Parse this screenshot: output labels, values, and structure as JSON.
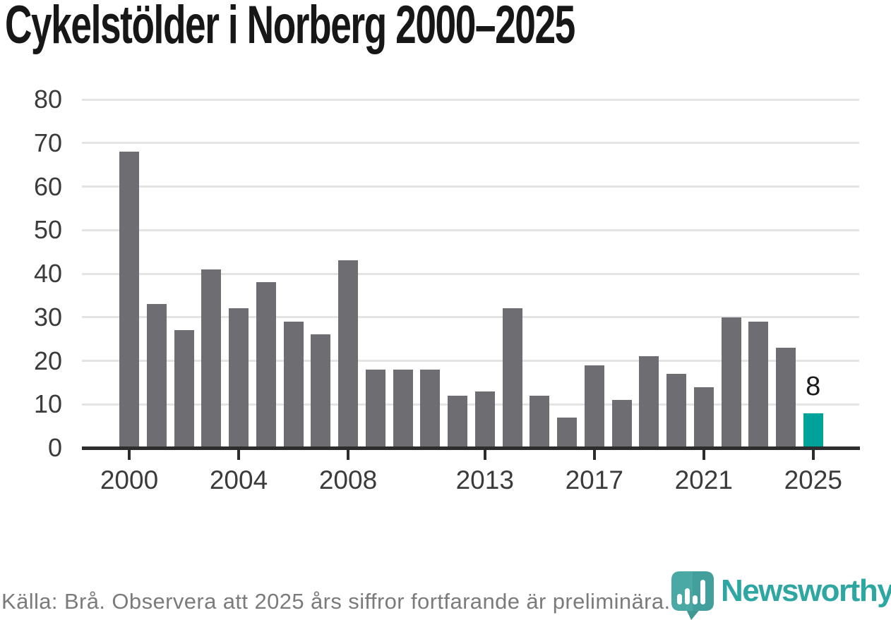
{
  "title": "Cykelstölder i Norberg 2000–2025",
  "chart_data": {
    "type": "bar",
    "title": "Cykelstölder i Norberg 2000–2025",
    "categories": [
      "2000",
      "2001",
      "2002",
      "2003",
      "2004",
      "2005",
      "2006",
      "2007",
      "2008",
      "2009",
      "2010",
      "2011",
      "2012",
      "2013",
      "2014",
      "2015",
      "2016",
      "2017",
      "2018",
      "2019",
      "2020",
      "2021",
      "2022",
      "2023",
      "2024",
      "2025"
    ],
    "values": [
      68,
      33,
      27,
      41,
      32,
      38,
      29,
      26,
      43,
      18,
      18,
      18,
      12,
      13,
      32,
      12,
      7,
      19,
      11,
      21,
      17,
      14,
      30,
      29,
      23,
      8
    ],
    "xlabel": "",
    "ylabel": "",
    "ylim": [
      0,
      80
    ],
    "y_ticks": [
      "0",
      "10",
      "20",
      "30",
      "40",
      "50",
      "60",
      "70",
      "80"
    ],
    "x_ticks": [
      {
        "label": "2000",
        "index": 0
      },
      {
        "label": "2004",
        "index": 4
      },
      {
        "label": "2008",
        "index": 8
      },
      {
        "label": "2013",
        "index": 13
      },
      {
        "label": "2017",
        "index": 17
      },
      {
        "label": "2021",
        "index": 21
      },
      {
        "label": "2025",
        "index": 25
      }
    ],
    "grid": true,
    "legend_position": "none",
    "bar_color": "#6e6e72",
    "highlight": {
      "index": 25,
      "color": "#00a29a",
      "data_label": "8"
    }
  },
  "footer": {
    "source_text": "Källa: Brå. Observera att 2025 års siffror fortfarande är preliminära.",
    "brand_name": "Newsworthy"
  },
  "colors": {
    "title": "#171717",
    "axis_line": "#2d2d2d",
    "gridline": "#e4e4e4",
    "tick_label": "#3b3b3b",
    "source_text": "#7b7b7b",
    "brand_teal": "#2ea7a2",
    "pin_teal": "#4aa9a4",
    "pin_shadow": "#3e9894"
  }
}
